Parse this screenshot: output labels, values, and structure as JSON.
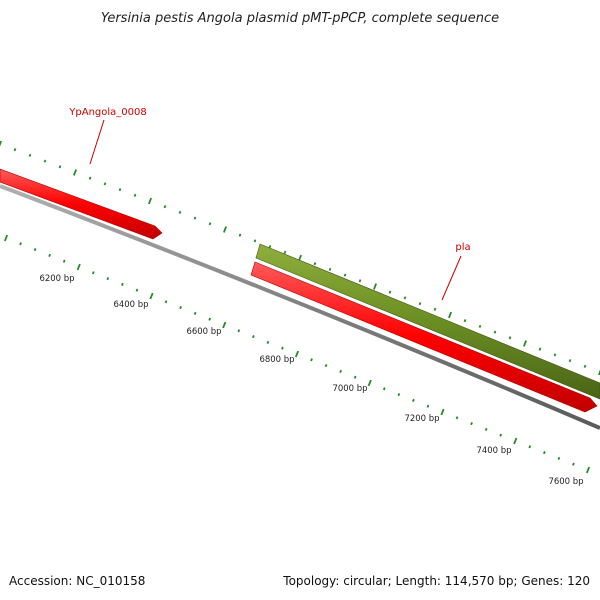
{
  "title": "Yersinia pestis Angola plasmid pMT-pPCP, complete sequence",
  "footer": {
    "accession": "Accession: NC_010158",
    "stats": "Topology: circular; Length: 114,570 bp; Genes: 120"
  },
  "axis_labels": [
    "6200 bp",
    "6400 bp",
    "6600 bp",
    "6800 bp",
    "7000 bp",
    "7200 bp",
    "7400 bp",
    "7600 bp"
  ],
  "genes": [
    {
      "name": "YpAngola_0008",
      "color": "#ff0000",
      "track": "forward"
    },
    {
      "name": "pla",
      "color": "#ff0000",
      "track": "forward"
    }
  ],
  "colors": {
    "forward_gene": "#ff0000",
    "cds_feature": "#6b8e23",
    "backbone": "#808080",
    "tick": "#228b22",
    "label": "#cc0000"
  }
}
